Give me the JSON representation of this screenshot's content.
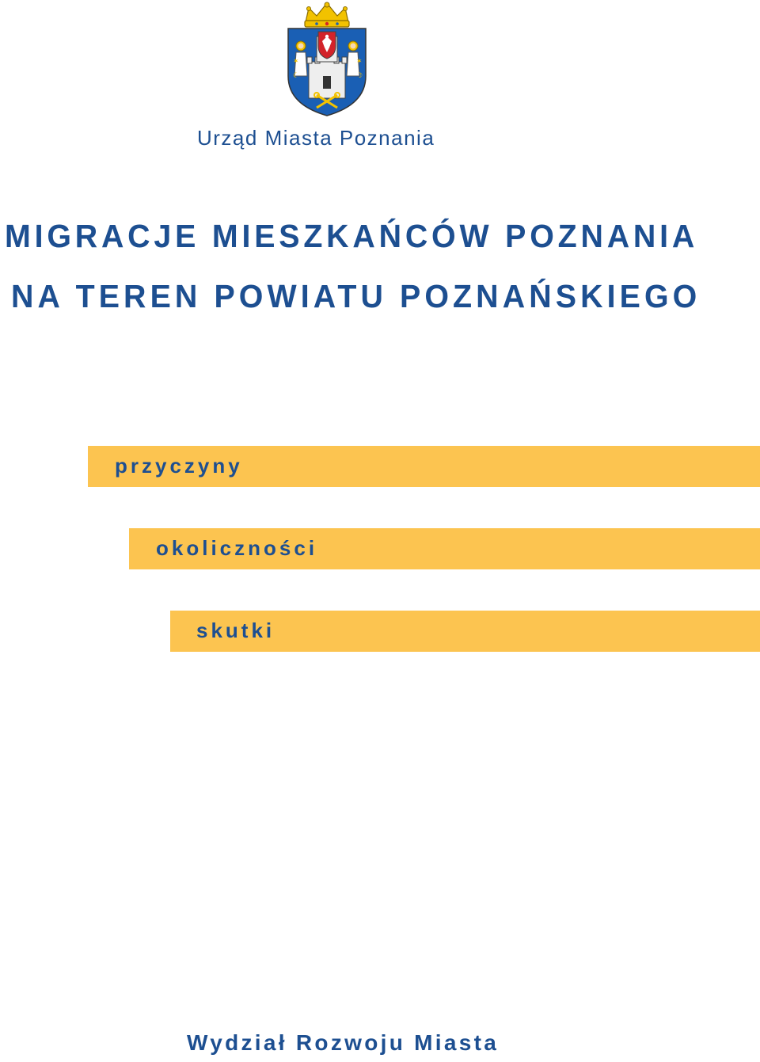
{
  "header": {
    "office_name": "Urząd Miasta Poznania"
  },
  "title": {
    "line1": "MIGRACJE MIESZKAŃCÓW POZNANIA",
    "line2": "NA TEREN POWIATU POZNAŃSKIEGO"
  },
  "sections": [
    {
      "label": "przyczyny"
    },
    {
      "label": "okoliczności"
    },
    {
      "label": "skutki"
    }
  ],
  "footer": {
    "department": "Wydział Rozwoju Miasta"
  },
  "colors": {
    "text_blue": "#1d4f91",
    "bar_yellow": "#fcc450",
    "crest_blue": "#1a5fb4",
    "crest_gold": "#f2c200",
    "crest_red": "#d2232a"
  },
  "icons": {
    "crest": "poznan-coat-of-arms-icon"
  }
}
